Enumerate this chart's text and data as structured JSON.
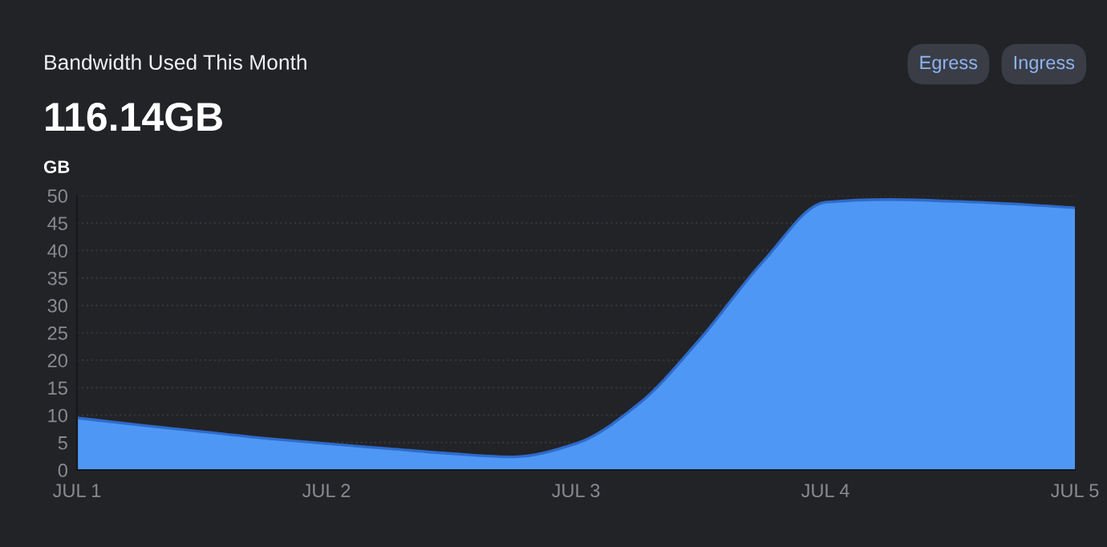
{
  "chart_data": {
    "type": "area",
    "title": "Bandwidth Used This Month",
    "subtitle": "116.14GB",
    "ylabel": "GB",
    "annotations": [
      "Egress",
      "Ingress"
    ],
    "categories": [
      "JUL 1",
      null,
      null,
      null,
      "JUL 2",
      null,
      null,
      null,
      "JUL 3",
      null,
      null,
      null,
      "JUL 4",
      null,
      null,
      null,
      "JUL 5"
    ],
    "series": [
      {
        "color": "#4f97f5",
        "values": [
          9.5,
          8.2,
          7.0,
          5.8,
          4.8,
          3.9,
          3.0,
          2.4,
          4.8,
          12,
          24,
          38,
          48.8,
          49.3,
          49,
          48.5,
          47.8
        ]
      }
    ],
    "ylim": [
      0,
      50
    ],
    "yticks": [
      0,
      5,
      10,
      15,
      20,
      25,
      30,
      35,
      40,
      45,
      50
    ],
    "grid": "y"
  }
}
